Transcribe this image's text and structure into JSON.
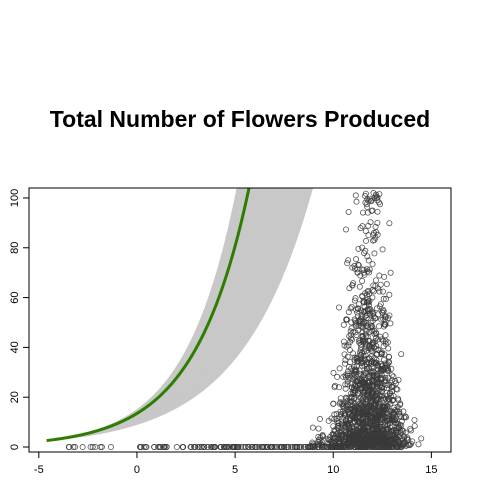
{
  "chart_data": {
    "type": "scatter",
    "title": "Total Number of Flowers Produced",
    "xlabel": "",
    "ylabel": "",
    "xlim": [
      -5.5,
      16
    ],
    "ylim": [
      -2,
      104
    ],
    "x_ticks": [
      "-5",
      "0",
      "5",
      "10",
      "15"
    ],
    "y_ticks": [
      "0",
      "20",
      "40",
      "60",
      "80",
      "100"
    ],
    "grid": false,
    "legend": "none",
    "colors": {
      "points": "#3a3a3a",
      "fit_line": "#2e7d00",
      "posterior_lines": "#c8c8c8",
      "axes": "#000000"
    },
    "series": [
      {
        "type": "line",
        "curve": "exponential",
        "x_start": -4.6,
        "y_start": 2.6,
        "y_at_0": 16.5,
        "x_reaches_100": 5.6
      },
      {
        "type": "line-band",
        "curve": "exponential",
        "x_start": -4.6,
        "y_start": 2.6,
        "x_reaches_100_range": [
          5.0,
          8.8
        ]
      },
      {
        "type": "scatter",
        "y_zero_x_range": [
          -4.5,
          13.5
        ],
        "cluster_center_x": 11.8,
        "cluster_x_range": [
          8.5,
          14.8
        ],
        "cluster_y_max": 102
      }
    ]
  }
}
